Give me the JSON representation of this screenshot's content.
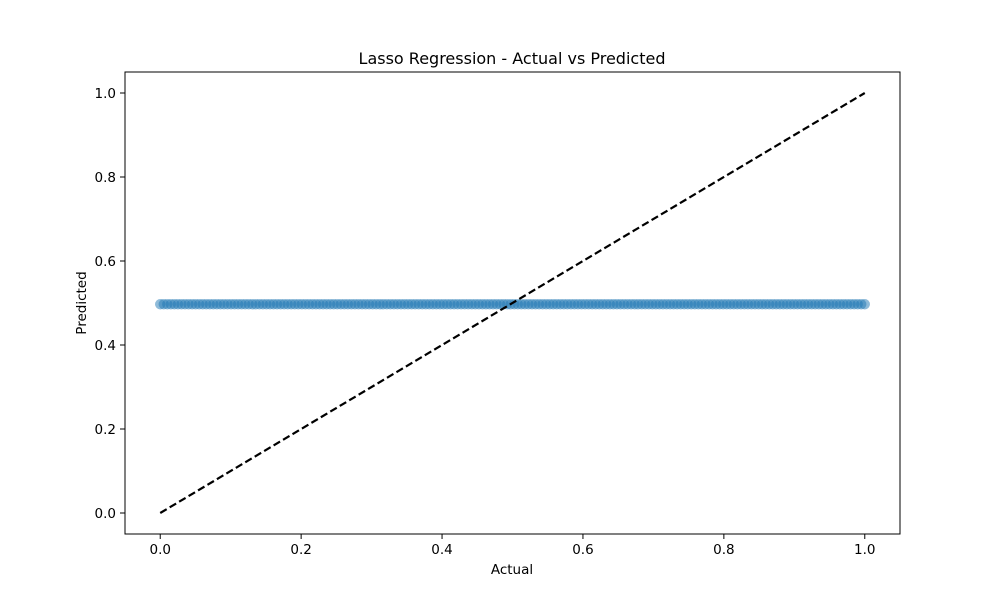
{
  "chart_data": {
    "type": "scatter",
    "title": "Lasso Regression - Actual vs Predicted",
    "xlabel": "Actual",
    "ylabel": "Predicted",
    "xlim": [
      -0.05,
      1.05
    ],
    "ylim": [
      -0.05,
      1.05
    ],
    "xticks": [
      "0.0",
      "0.2",
      "0.4",
      "0.6",
      "0.8",
      "1.0"
    ],
    "yticks": [
      "0.0",
      "0.2",
      "0.4",
      "0.6",
      "0.8",
      "1.0"
    ],
    "grid": false,
    "scatter": {
      "color": "#1f77b4",
      "alpha": 0.5,
      "predicted_value": 0.497,
      "x_range": [
        0.0,
        1.0
      ],
      "point_count": 200
    },
    "reference_line": {
      "x": [
        0.0,
        1.0
      ],
      "y": [
        0.0,
        1.0
      ],
      "color": "#000000",
      "style": "dashed"
    }
  }
}
